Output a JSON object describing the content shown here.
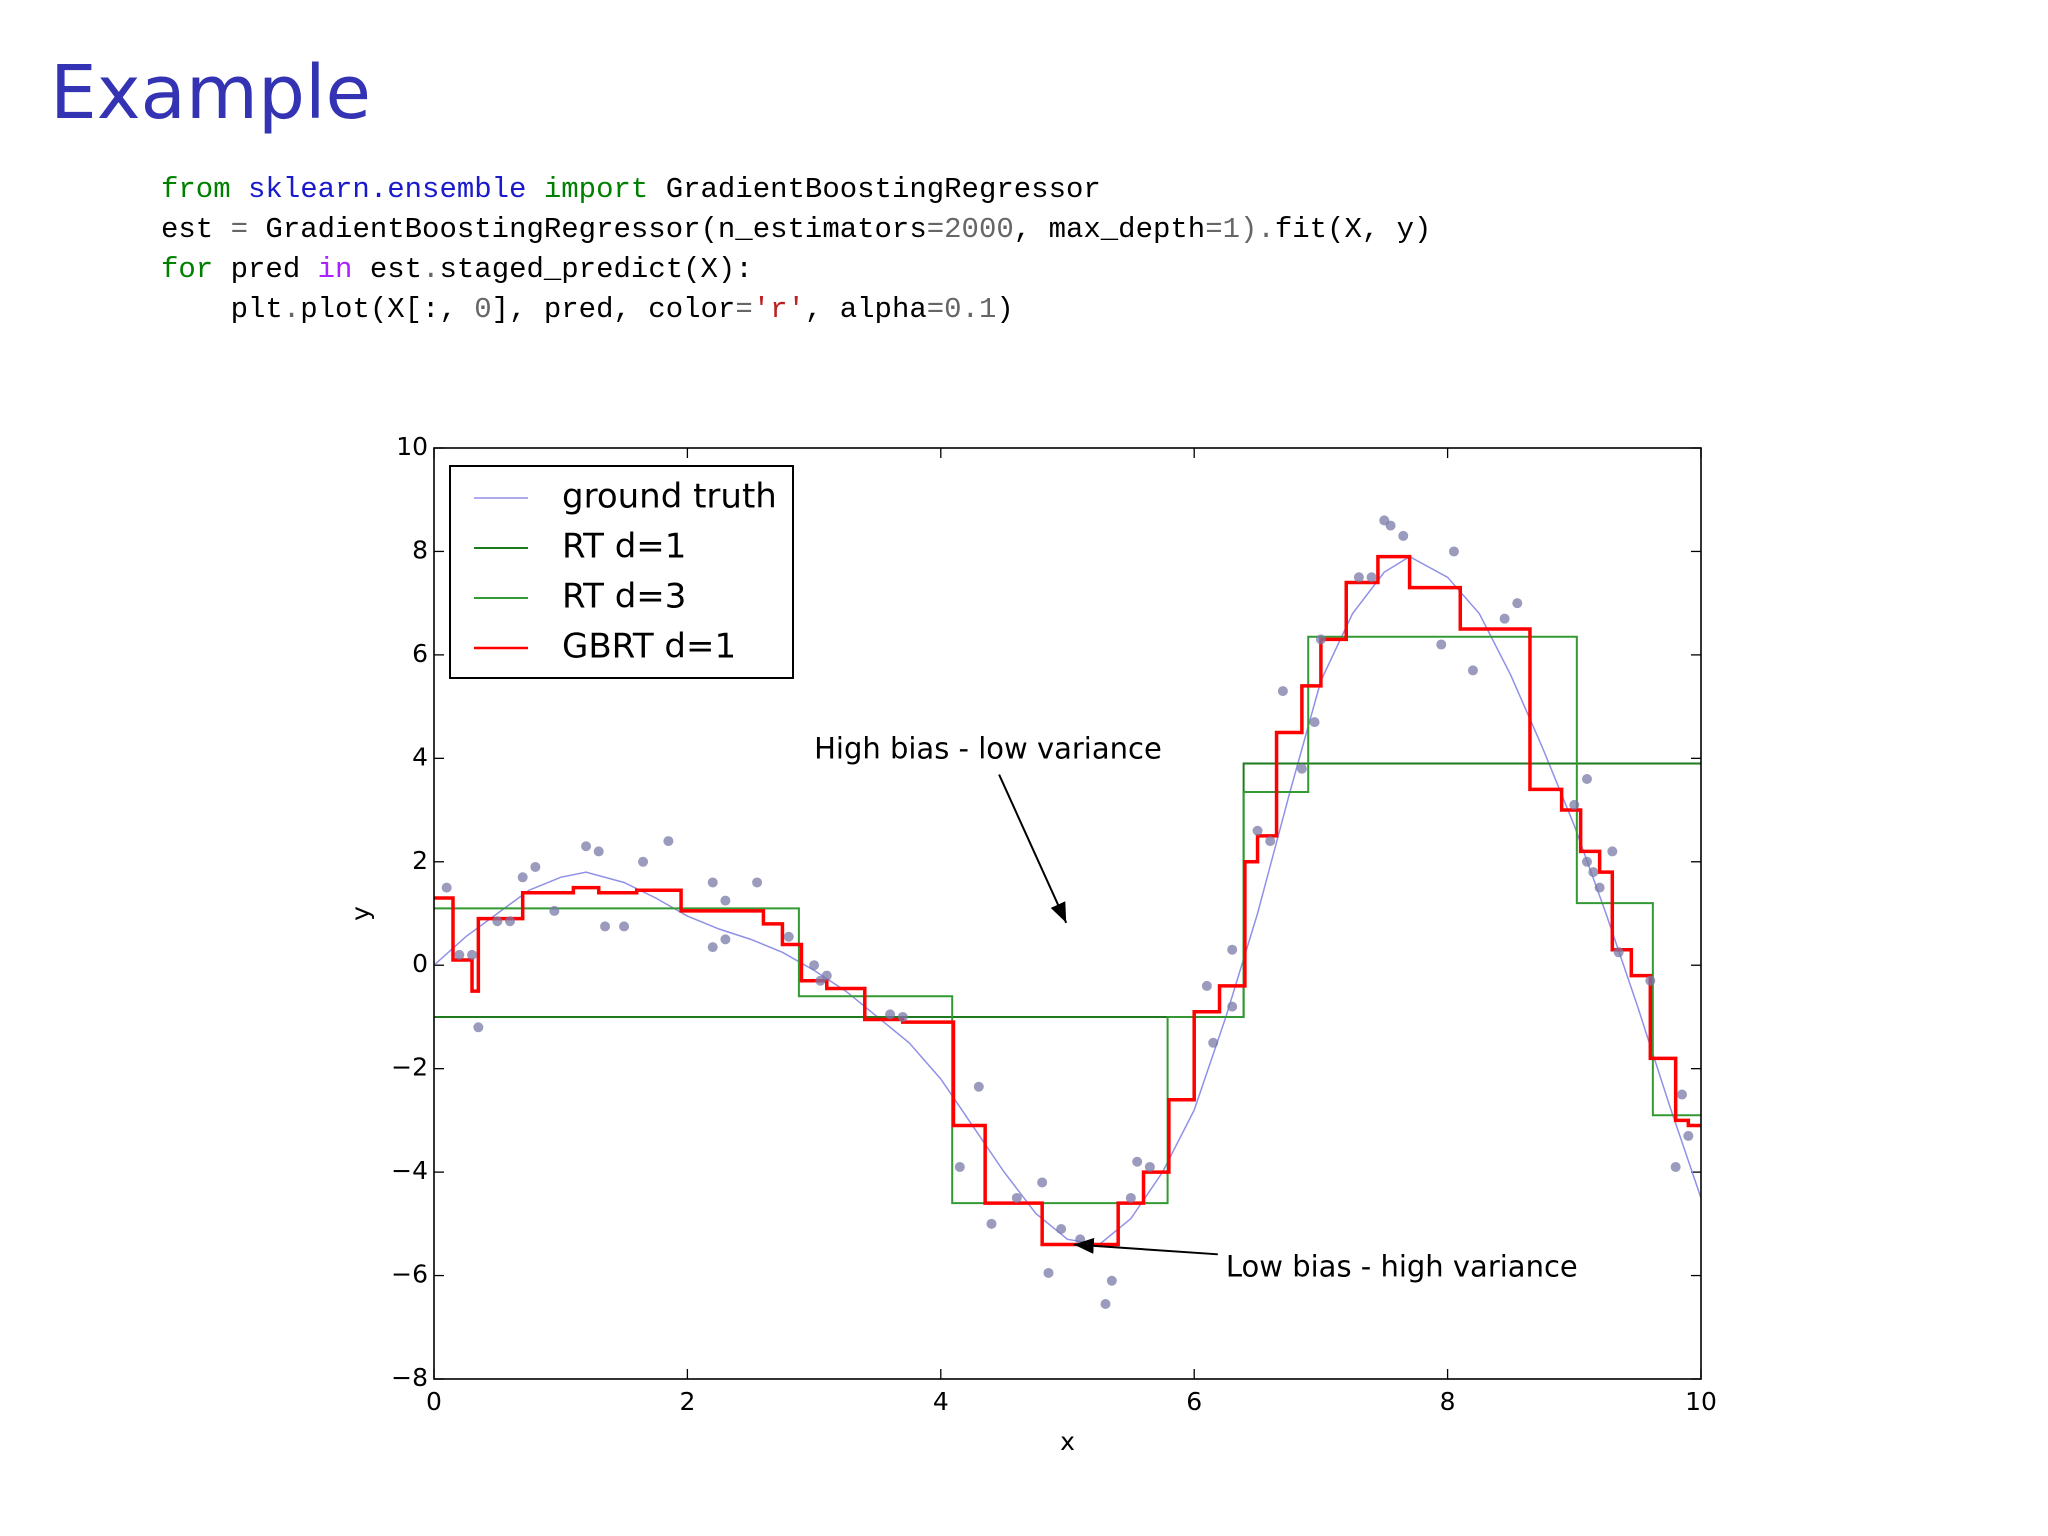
{
  "header": {
    "title": "Example"
  },
  "code": {
    "lines": [
      [
        {
          "text": "from ",
          "color": "#008000"
        },
        {
          "text": "sklearn.ensemble",
          "color": "#1a1acc"
        },
        {
          "text": " import ",
          "color": "#008000"
        },
        {
          "text": "GradientBoostingRegressor",
          "color": "#000000"
        }
      ],
      [
        {
          "text": "est ",
          "color": "#000000"
        },
        {
          "text": "=",
          "color": "#666666"
        },
        {
          "text": " GradientBoostingRegressor(n_estimators",
          "color": "#000000"
        },
        {
          "text": "=2000",
          "color": "#666666"
        },
        {
          "text": ", max_depth",
          "color": "#000000"
        },
        {
          "text": "=1",
          "color": "#666666"
        },
        {
          "text": ").",
          "color": "#666666"
        },
        {
          "text": "fit(X, y)",
          "color": "#000000"
        }
      ],
      [
        {
          "text": "for",
          "color": "#008000"
        },
        {
          "text": " pred ",
          "color": "#000000"
        },
        {
          "text": "in",
          "color": "#aa22ff"
        },
        {
          "text": " est",
          "color": "#000000"
        },
        {
          "text": ".",
          "color": "#666666"
        },
        {
          "text": "staged_predict(X):",
          "color": "#000000"
        }
      ],
      [
        {
          "text": "    plt",
          "color": "#000000"
        },
        {
          "text": ".",
          "color": "#666666"
        },
        {
          "text": "plot(X[:, ",
          "color": "#000000"
        },
        {
          "text": "0",
          "color": "#666666"
        },
        {
          "text": "], pred, color",
          "color": "#000000"
        },
        {
          "text": "=",
          "color": "#666666"
        },
        {
          "text": "'r'",
          "color": "#ba2121"
        },
        {
          "text": ", alpha",
          "color": "#000000"
        },
        {
          "text": "=0.1",
          "color": "#666666"
        },
        {
          "text": ")",
          "color": "#000000"
        }
      ]
    ]
  },
  "chart_data": {
    "type": "line",
    "xlabel": "x",
    "ylabel": "y",
    "xlim": [
      0,
      10
    ],
    "ylim": [
      -8,
      10
    ],
    "xticks": [
      0,
      2,
      4,
      6,
      8,
      10
    ],
    "yticks": [
      {
        "value": -8,
        "label": "−8"
      },
      {
        "value": -6,
        "label": "−6"
      },
      {
        "value": -4,
        "label": "−4"
      },
      {
        "value": -2,
        "label": "−2"
      },
      0,
      2,
      4,
      6,
      8,
      10
    ],
    "legend": "upper left",
    "series": [
      {
        "name": "ground truth",
        "color": "#9090e8",
        "width": 1.5,
        "x": [
          0,
          0.25,
          0.5,
          0.75,
          1,
          1.2,
          1.5,
          1.75,
          2,
          2.25,
          2.5,
          2.75,
          3,
          3.25,
          3.5,
          3.75,
          4,
          4.25,
          4.5,
          4.75,
          5,
          5.25,
          5.5,
          5.75,
          6,
          6.25,
          6.5,
          6.75,
          7,
          7.25,
          7.5,
          7.7,
          8,
          8.25,
          8.5,
          8.75,
          9,
          9.25,
          9.5,
          9.75,
          10
        ],
        "values": [
          0,
          0.55,
          1.0,
          1.45,
          1.7,
          1.8,
          1.6,
          1.3,
          0.95,
          0.7,
          0.5,
          0.25,
          -0.1,
          -0.5,
          -1.0,
          -1.5,
          -2.2,
          -3.1,
          -4.0,
          -4.8,
          -5.3,
          -5.4,
          -4.9,
          -4.0,
          -2.8,
          -1.0,
          1.0,
          3.3,
          5.5,
          6.8,
          7.6,
          7.9,
          7.5,
          6.8,
          5.6,
          4.2,
          2.7,
          1.0,
          -0.8,
          -2.7,
          -4.5
        ]
      },
      {
        "name": "RT d=1",
        "color": "#1f7a1f",
        "width": 2,
        "step": "post",
        "x": [
          0,
          6.39
        ],
        "values": [
          -1.0,
          3.9
        ]
      },
      {
        "name": "RT d=3",
        "color": "#339933",
        "width": 2,
        "step": "post",
        "x": [
          0,
          2.88,
          4.09,
          5.79,
          6.39,
          6.9,
          9.02,
          9.62
        ],
        "values": [
          1.1,
          -0.6,
          -4.6,
          -1.0,
          3.35,
          6.35,
          1.2,
          -2.9
        ]
      },
      {
        "name": "GBRT d=1",
        "color": "#ff0000",
        "width": 3.5,
        "step": "post",
        "x": [
          0,
          0.15,
          0.3,
          0.35,
          0.7,
          1.1,
          1.3,
          1.6,
          1.95,
          2.6,
          2.75,
          2.9,
          3.1,
          3.4,
          3.7,
          4.1,
          4.35,
          4.8,
          5.4,
          5.6,
          5.8,
          6.0,
          6.2,
          6.4,
          6.5,
          6.65,
          6.85,
          7.0,
          7.2,
          7.45,
          7.7,
          8.1,
          8.65,
          8.9,
          9.05,
          9.2,
          9.3,
          9.45,
          9.6,
          9.8,
          9.9
        ],
        "values": [
          1.3,
          0.1,
          -0.5,
          0.9,
          1.4,
          1.5,
          1.4,
          1.45,
          1.05,
          0.8,
          0.4,
          -0.3,
          -0.45,
          -1.05,
          -1.1,
          -3.1,
          -4.6,
          -5.4,
          -4.6,
          -4.0,
          -2.6,
          -0.9,
          -0.4,
          2.0,
          2.5,
          4.5,
          5.4,
          6.3,
          7.4,
          7.9,
          7.3,
          6.5,
          3.4,
          3.0,
          2.2,
          1.8,
          0.3,
          -0.2,
          -1.8,
          -3.0,
          -3.1
        ]
      }
    ],
    "points": {
      "color": "#7a7aa8",
      "x": [
        0.1,
        0.2,
        0.3,
        0.35,
        0.5,
        0.6,
        0.7,
        0.8,
        0.95,
        1.2,
        1.3,
        1.35,
        1.5,
        1.65,
        1.85,
        2.2,
        2.2,
        2.3,
        2.3,
        2.55,
        2.8,
        3.0,
        3.05,
        3.1,
        3.6,
        3.7,
        4.15,
        4.3,
        4.4,
        4.6,
        4.8,
        4.85,
        4.95,
        5.1,
        5.3,
        5.35,
        5.5,
        5.55,
        5.65,
        6.1,
        6.15,
        6.3,
        6.3,
        6.5,
        6.6,
        6.7,
        6.85,
        6.95,
        7.0,
        7.3,
        7.4,
        7.5,
        7.55,
        7.65,
        7.95,
        8.05,
        8.2,
        8.45,
        8.55,
        9.0,
        9.1,
        9.1,
        9.15,
        9.2,
        9.3,
        9.35,
        9.6,
        9.8,
        9.85,
        9.9
      ],
      "y": [
        1.5,
        0.2,
        0.2,
        -1.2,
        0.85,
        0.85,
        1.7,
        1.9,
        1.05,
        2.3,
        2.2,
        0.75,
        0.75,
        2.0,
        2.4,
        0.35,
        1.6,
        0.5,
        1.25,
        1.6,
        0.55,
        0.0,
        -0.3,
        -0.2,
        -0.95,
        -1.0,
        -3.9,
        -2.35,
        -5.0,
        -4.5,
        -4.2,
        -5.95,
        -5.1,
        -5.3,
        -6.55,
        -6.1,
        -4.5,
        -3.8,
        -3.9,
        -0.4,
        -1.5,
        0.3,
        -0.8,
        2.6,
        2.4,
        5.3,
        3.8,
        4.7,
        6.3,
        7.5,
        7.5,
        8.6,
        8.5,
        8.3,
        6.2,
        8.0,
        5.7,
        6.7,
        7.0,
        3.1,
        3.6,
        2.0,
        1.8,
        1.5,
        2.2,
        0.25,
        -0.3,
        -3.9,
        -2.5,
        -3.3
      ]
    },
    "annotations": [
      {
        "text": "High bias - low variance",
        "xy": [
          4.99,
          0.82
        ],
        "xytext": [
          3.0,
          4.15
        ]
      },
      {
        "text": "Low bias - high variance",
        "xy": [
          5.05,
          -5.4
        ],
        "xytext": [
          6.25,
          -5.86
        ]
      }
    ]
  }
}
